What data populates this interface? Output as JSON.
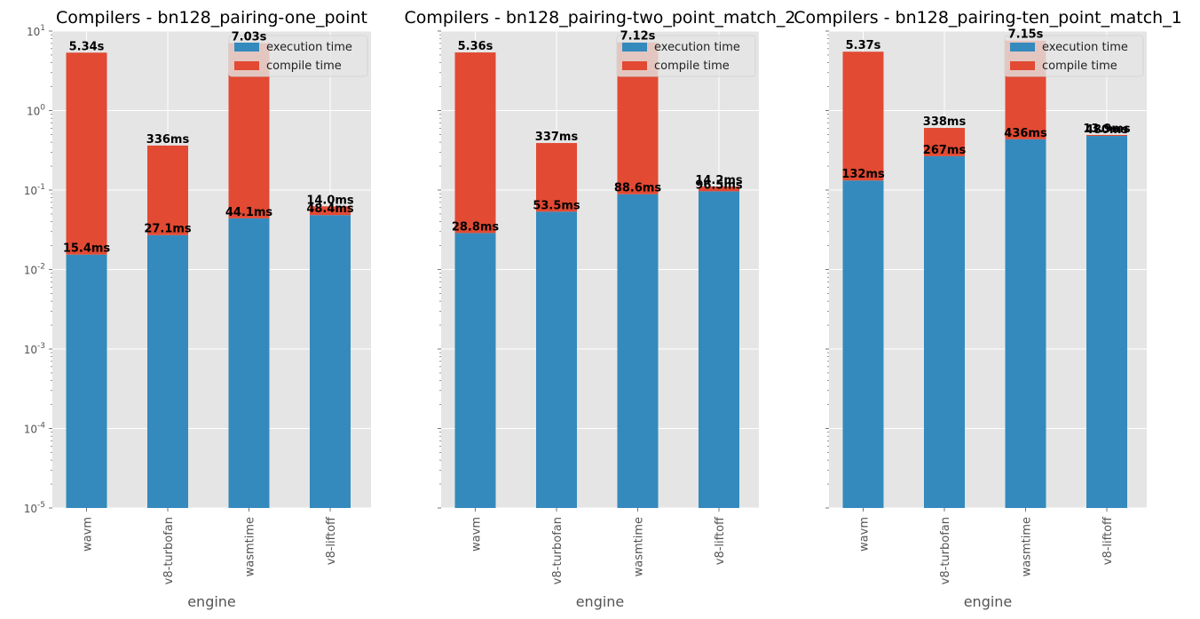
{
  "colors": {
    "execution": "#348abd",
    "compile": "#e24a33",
    "plot_background": "#e5e5e5",
    "grid": "#ffffff",
    "tick_text": "#555555"
  },
  "chart_data": [
    {
      "type": "bar",
      "stacked": true,
      "title": "Compilers - bn128_pairing-one_point",
      "xlabel": "engine",
      "ylabel": "",
      "yscale": "log",
      "ylim": [
        1e-05,
        10
      ],
      "ytick_labels": [
        "10^-5",
        "10^-4",
        "10^-3",
        "10^-2",
        "10^-1",
        "10^0",
        "10^1"
      ],
      "grid": true,
      "legend_position": "top-right",
      "categories": [
        "wavm",
        "v8-turbofan",
        "wasmtime",
        "v8-liftoff"
      ],
      "series": [
        {
          "name": "execution time",
          "values": [
            0.0154,
            0.0271,
            0.0441,
            0.0484
          ]
        },
        {
          "name": "compile time",
          "values": [
            5.34,
            0.336,
            7.03,
            0.014
          ]
        }
      ],
      "bar_labels": {
        "execution": [
          "15.4ms",
          "27.1ms",
          "44.1ms",
          "48.4ms"
        ],
        "compile": [
          "5.34s",
          "336ms",
          "7.03s",
          "14.0ms"
        ]
      }
    },
    {
      "type": "bar",
      "stacked": true,
      "title": "Compilers - bn128_pairing-two_point_match_2",
      "xlabel": "engine",
      "ylabel": "",
      "yscale": "log",
      "ylim": [
        1e-05,
        10
      ],
      "ytick_labels": [],
      "grid": true,
      "legend_position": "top-right",
      "categories": [
        "wavm",
        "v8-turbofan",
        "wasmtime",
        "v8-liftoff"
      ],
      "series": [
        {
          "name": "execution time",
          "values": [
            0.0288,
            0.0535,
            0.0886,
            0.0965
          ]
        },
        {
          "name": "compile time",
          "values": [
            5.36,
            0.337,
            7.12,
            0.0142
          ]
        }
      ],
      "bar_labels": {
        "execution": [
          "28.8ms",
          "53.5ms",
          "88.6ms",
          "96.5ms"
        ],
        "compile": [
          "5.36s",
          "337ms",
          "7.12s",
          "14.2ms"
        ]
      }
    },
    {
      "type": "bar",
      "stacked": true,
      "title": "Compilers - bn128_pairing-ten_point_match_1",
      "xlabel": "engine",
      "ylabel": "",
      "yscale": "log",
      "ylim": [
        1e-05,
        10
      ],
      "ytick_labels": [],
      "grid": true,
      "legend_position": "top-right",
      "categories": [
        "wavm",
        "v8-turbofan",
        "wasmtime",
        "v8-liftoff"
      ],
      "series": [
        {
          "name": "execution time",
          "values": [
            0.132,
            0.267,
            0.436,
            0.48
          ]
        },
        {
          "name": "compile time",
          "values": [
            5.37,
            0.338,
            7.15,
            0.0139
          ]
        }
      ],
      "bar_labels": {
        "execution": [
          "132ms",
          "267ms",
          "436ms",
          "480ms"
        ],
        "compile": [
          "5.37s",
          "338ms",
          "7.15s",
          "13.9ms"
        ]
      }
    }
  ]
}
